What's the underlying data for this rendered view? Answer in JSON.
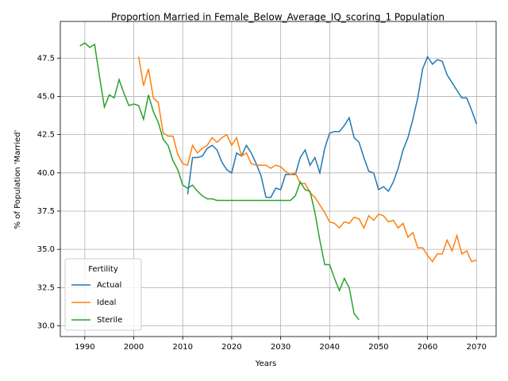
{
  "chart_data": {
    "type": "line",
    "title": "Proportion Married in Female_Below_Average_IQ_scoring_1 Population",
    "x_label": "Years",
    "y_label": "% of Population 'Married'",
    "xlim": [
      1985,
      2074
    ],
    "ylim": [
      29.3,
      49.9
    ],
    "xticks": [
      1990,
      2000,
      2010,
      2020,
      2030,
      2040,
      2050,
      2060,
      2070
    ],
    "yticks": [
      {
        "value": 30,
        "label": "30.0"
      },
      32.5,
      {
        "value": 35,
        "label": "35.0"
      },
      37.5,
      {
        "value": 40,
        "label": "40.0"
      },
      42.5,
      {
        "value": 45,
        "label": "45.0"
      },
      47.5
    ],
    "grid": true,
    "legend_title": "Fertility",
    "legend_position": "lower left",
    "series": [
      {
        "name": "Actual",
        "color": "#1f77b4",
        "x": [
          2011,
          2012,
          2013,
          2014,
          2015,
          2016,
          2017,
          2018,
          2019,
          2020,
          2021,
          2022,
          2023,
          2024,
          2025,
          2026,
          2027,
          2028,
          2029,
          2030,
          2031,
          2032,
          2033,
          2034,
          2035,
          2036,
          2037,
          2038,
          2039,
          2040,
          2041,
          2042,
          2043,
          2044,
          2045,
          2046,
          2047,
          2048,
          2049,
          2050,
          2051,
          2052,
          2053,
          2054,
          2055,
          2056,
          2057,
          2058,
          2059,
          2060,
          2061,
          2062,
          2063,
          2064,
          2065,
          2066,
          2067,
          2068,
          2069,
          2070
        ],
        "values": [
          38.6,
          41.0,
          41.0,
          41.1,
          41.6,
          41.8,
          41.5,
          40.7,
          40.2,
          40.0,
          41.3,
          41.1,
          41.8,
          41.3,
          40.6,
          39.8,
          38.4,
          38.4,
          39.0,
          38.9,
          39.9,
          39.9,
          39.9,
          41.0,
          41.5,
          40.5,
          41.0,
          40.0,
          41.6,
          42.6,
          42.7,
          42.7,
          43.1,
          43.6,
          42.3,
          42.0,
          41.0,
          40.1,
          40.0,
          38.9,
          39.1,
          38.8,
          39.4,
          40.3,
          41.5,
          42.3,
          43.5,
          44.9,
          46.8,
          47.6,
          47.1,
          47.4,
          47.3,
          46.4,
          45.9,
          45.4,
          44.9,
          44.9,
          44.1,
          43.2
        ]
      },
      {
        "name": "Ideal",
        "color": "#ff7f0e",
        "x": [
          2001,
          2002,
          2003,
          2004,
          2005,
          2006,
          2007,
          2008,
          2009,
          2010,
          2011,
          2012,
          2013,
          2014,
          2015,
          2016,
          2017,
          2018,
          2019,
          2020,
          2021,
          2022,
          2023,
          2024,
          2025,
          2026,
          2027,
          2028,
          2029,
          2030,
          2031,
          2032,
          2033,
          2034,
          2035,
          2036,
          2037,
          2038,
          2039,
          2040,
          2041,
          2042,
          2043,
          2044,
          2045,
          2046,
          2047,
          2048,
          2049,
          2050,
          2051,
          2052,
          2053,
          2054,
          2055,
          2056,
          2057,
          2058,
          2059,
          2060,
          2061,
          2062,
          2063,
          2064,
          2065,
          2066,
          2067,
          2068,
          2069,
          2070
        ],
        "values": [
          47.6,
          45.7,
          46.8,
          44.9,
          44.6,
          42.6,
          42.4,
          42.4,
          41.2,
          40.6,
          40.5,
          41.8,
          41.3,
          41.6,
          41.8,
          42.3,
          42.0,
          42.3,
          42.5,
          41.8,
          42.3,
          41.1,
          41.3,
          40.6,
          40.5,
          40.5,
          40.5,
          40.3,
          40.5,
          40.4,
          40.1,
          39.9,
          40.0,
          39.3,
          39.3,
          38.7,
          38.4,
          37.9,
          37.4,
          36.8,
          36.7,
          36.4,
          36.8,
          36.7,
          37.1,
          37.0,
          36.4,
          37.2,
          36.9,
          37.3,
          37.2,
          36.8,
          36.9,
          36.4,
          36.7,
          35.8,
          36.1,
          35.1,
          35.1,
          34.6,
          34.2,
          34.7,
          34.7,
          35.6,
          34.9,
          35.9,
          34.7,
          34.9,
          34.2,
          34.3
        ]
      },
      {
        "name": "Sterile",
        "color": "#2ca02c",
        "x": [
          1989,
          1990,
          1991,
          1992,
          1993,
          1994,
          1995,
          1996,
          1997,
          1998,
          1999,
          2000,
          2001,
          2002,
          2003,
          2004,
          2005,
          2006,
          2007,
          2008,
          2009,
          2010,
          2011,
          2012,
          2013,
          2014,
          2015,
          2016,
          2017,
          2018,
          2019,
          2020,
          2021,
          2022,
          2023,
          2024,
          2025,
          2026,
          2027,
          2028,
          2029,
          2030,
          2031,
          2032,
          2033,
          2034,
          2035,
          2036,
          2037,
          2038,
          2039,
          2040,
          2041,
          2042,
          2043,
          2044,
          2045,
          2046
        ],
        "values": [
          48.3,
          48.5,
          48.2,
          48.4,
          46.3,
          44.3,
          45.1,
          44.9,
          46.1,
          45.2,
          44.4,
          44.5,
          44.4,
          43.5,
          45.1,
          44.0,
          43.3,
          42.2,
          41.8,
          40.8,
          40.2,
          39.2,
          39.0,
          39.2,
          38.8,
          38.5,
          38.3,
          38.3,
          38.2,
          38.2,
          38.2,
          38.2,
          38.2,
          38.2,
          38.2,
          38.2,
          38.2,
          38.2,
          38.2,
          38.2,
          38.2,
          38.2,
          38.2,
          38.2,
          38.5,
          39.4,
          38.9,
          38.8,
          37.4,
          35.6,
          34.0,
          34.0,
          33.1,
          32.3,
          33.1,
          32.5,
          30.8,
          30.4
        ]
      }
    ]
  }
}
